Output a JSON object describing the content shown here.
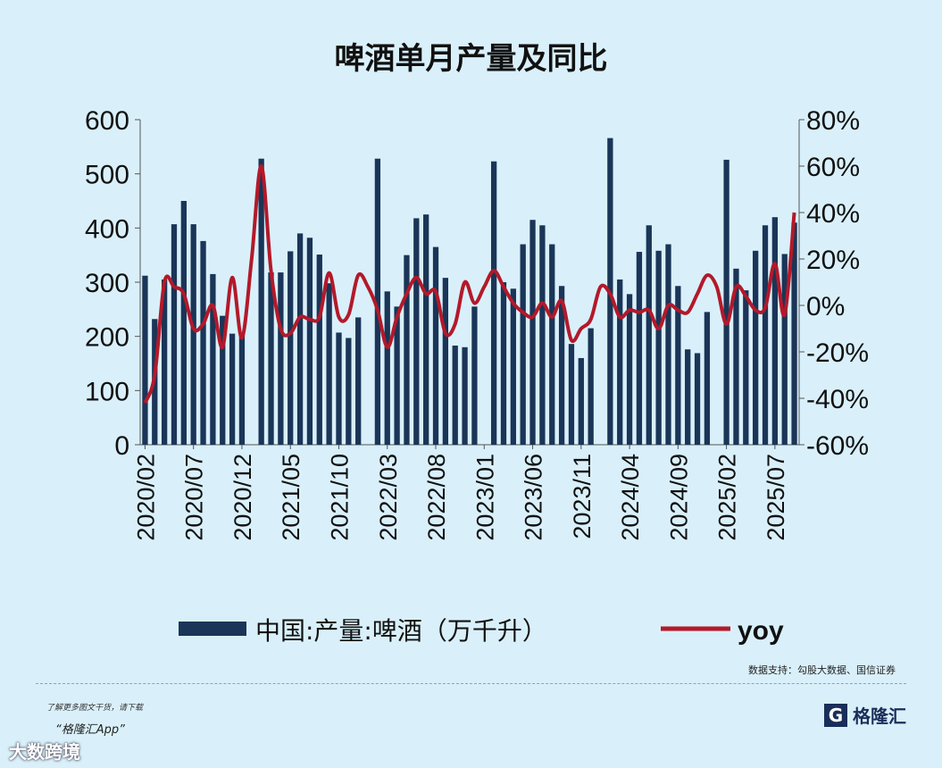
{
  "chart_data": {
    "type": "bar",
    "title": "啤酒单月产量及同比",
    "source": "数据支持：勾股大数据、国信证券",
    "legend": {
      "position": "bottom",
      "bar_label": "中国:产量:啤酒（万千升）",
      "line_label": "yoy"
    },
    "left_axis": {
      "ylim": [
        0,
        600
      ],
      "ticks": [
        0,
        100,
        200,
        300,
        400,
        500,
        600
      ]
    },
    "right_axis": {
      "ylim": [
        -60,
        80
      ],
      "ticks": [
        "-60%",
        "-40%",
        "-20%",
        "0%",
        "20%",
        "40%",
        "60%",
        "80%"
      ]
    },
    "x_tick_labels": [
      "2020/02",
      "2020/07",
      "2020/12",
      "2021/05",
      "2021/10",
      "2022/03",
      "2022/08",
      "2023/01",
      "2023/06",
      "2023/11",
      "2024/04",
      "2024/09",
      "2025/02",
      "2025/07"
    ],
    "categories": [
      "2020/02",
      "2020/03",
      "2020/04",
      "2020/05",
      "2020/06",
      "2020/07",
      "2020/08",
      "2020/09",
      "2020/10",
      "2020/11",
      "2020/12",
      "2021/01",
      "2021/02",
      "2021/03",
      "2021/04",
      "2021/05",
      "2021/06",
      "2021/07",
      "2021/08",
      "2021/09",
      "2021/10",
      "2021/11",
      "2021/12",
      "2022/01",
      "2022/02",
      "2022/03",
      "2022/04",
      "2022/05",
      "2022/06",
      "2022/07",
      "2022/08",
      "2022/09",
      "2022/10",
      "2022/11",
      "2022/12",
      "2023/01",
      "2023/02",
      "2023/03",
      "2023/04",
      "2023/05",
      "2023/06",
      "2023/07",
      "2023/08",
      "2023/09",
      "2023/10",
      "2023/11",
      "2023/12",
      "2024/01",
      "2024/02",
      "2024/03",
      "2024/04",
      "2024/05",
      "2024/06",
      "2024/07",
      "2024/08",
      "2024/09",
      "2024/10",
      "2024/11",
      "2024/12",
      "2025/01",
      "2025/02",
      "2025/03",
      "2025/04",
      "2025/05",
      "2025/06",
      "2025/07",
      "2025/08",
      "2025/09"
    ],
    "series": [
      {
        "name": "中国:产量:啤酒（万千升）",
        "axis": "left",
        "values": [
          312,
          232,
          305,
          407,
          450,
          407,
          376,
          315,
          238,
          205,
          205,
          0,
          528,
          318,
          318,
          357,
          390,
          382,
          351,
          298,
          207,
          197,
          235,
          0,
          528,
          283,
          255,
          350,
          418,
          425,
          365,
          308,
          183,
          180,
          255,
          0,
          523,
          300,
          288,
          370,
          415,
          405,
          370,
          293,
          186,
          160,
          215,
          0,
          566,
          305,
          278,
          356,
          405,
          358,
          370,
          293,
          176,
          169,
          245,
          0,
          526,
          325,
          285,
          358,
          405,
          420,
          352,
          410
        ]
      },
      {
        "name": "yoy",
        "axis": "right",
        "values": [
          -42,
          -30,
          10,
          8,
          5,
          -10,
          -8,
          0,
          -18,
          12,
          -14,
          20,
          60,
          15,
          -10,
          -12,
          -5,
          -6,
          -5,
          14,
          -5,
          -4,
          13,
          8,
          -2,
          -18,
          -5,
          5,
          12,
          5,
          6,
          -12,
          -8,
          10,
          1,
          8,
          15,
          8,
          1,
          -3,
          -5,
          1,
          -5,
          2,
          -15,
          -10,
          -6,
          8,
          5,
          -5,
          -2,
          -3,
          -2,
          -10,
          0,
          -2,
          -3,
          5,
          13,
          8,
          -8,
          8,
          4,
          -2,
          -1,
          18,
          -4,
          40
        ]
      }
    ]
  },
  "branding": {
    "download_note": "了解更多图文干货，请下载",
    "app_name": "“格隆汇App”",
    "logo_letter": "G",
    "logo_text": "格隆汇",
    "corner_mark": "大数跨境"
  },
  "colors": {
    "bar": "#1a3557",
    "line": "#b3192a",
    "background": "#d9f0fa"
  }
}
